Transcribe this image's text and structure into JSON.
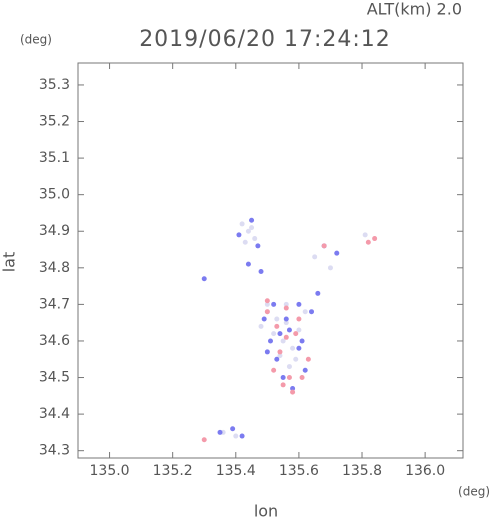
{
  "chart_data": {
    "type": "scatter",
    "title": "2019/06/20 17:24:12",
    "annotation": "ALT(km) 2.0",
    "x_label": "lon",
    "y_label": "lat",
    "x_unit": "(deg)",
    "y_unit": "(deg)",
    "xlim": [
      134.9,
      136.12
    ],
    "ylim": [
      34.28,
      35.36
    ],
    "xticks": [
      {
        "value": 135.0,
        "label": "135.0"
      },
      135.2,
      135.4,
      135.6,
      135.8,
      {
        "value": 136.0,
        "label": "136.0"
      }
    ],
    "yticks": [
      34.3,
      34.4,
      34.5,
      34.6,
      34.7,
      34.8,
      34.9,
      {
        "value": 35.0,
        "label": "35.0"
      },
      35.1,
      35.2,
      35.3
    ],
    "series": [
      {
        "color": "#dcdcf2",
        "x": [
          135.42,
          135.44,
          135.46,
          135.43,
          135.45,
          135.5,
          135.53,
          135.56,
          135.52,
          135.55,
          135.58,
          135.54,
          135.57,
          135.6,
          135.62,
          135.5,
          135.56,
          135.59,
          135.48,
          135.65,
          135.7,
          135.36,
          135.4,
          135.81
        ],
        "values": [
          34.92,
          34.9,
          34.88,
          34.87,
          34.91,
          34.68,
          34.66,
          34.65,
          34.62,
          34.6,
          34.58,
          34.56,
          34.53,
          34.63,
          34.68,
          34.7,
          34.7,
          34.55,
          34.64,
          34.83,
          34.8,
          34.35,
          34.34,
          34.89
        ]
      },
      {
        "color": "#7b7bf0",
        "x": [
          135.45,
          135.47,
          135.41,
          135.44,
          135.48,
          135.49,
          135.51,
          135.53,
          135.57,
          135.6,
          135.62,
          135.55,
          135.58,
          135.61,
          135.52,
          135.56,
          135.64,
          135.68,
          135.72,
          135.3,
          135.35,
          135.39,
          135.42,
          135.5,
          135.6,
          135.54,
          135.66
        ],
        "values": [
          34.93,
          34.86,
          34.89,
          34.81,
          34.79,
          34.66,
          34.6,
          34.55,
          34.63,
          34.58,
          34.52,
          34.5,
          34.47,
          34.6,
          34.7,
          34.66,
          34.68,
          34.86,
          34.84,
          34.77,
          34.35,
          34.36,
          34.34,
          34.57,
          34.7,
          34.62,
          34.73
        ]
      },
      {
        "color": "#f49aaa",
        "x": [
          135.5,
          135.53,
          135.56,
          135.59,
          135.55,
          135.58,
          135.57,
          135.54,
          135.6,
          135.63,
          135.52,
          135.68,
          135.84,
          135.82,
          135.3,
          135.5,
          135.61,
          135.56
        ],
        "values": [
          34.71,
          34.64,
          34.61,
          34.62,
          34.48,
          34.46,
          34.5,
          34.57,
          34.66,
          34.55,
          34.52,
          34.86,
          34.88,
          34.87,
          34.33,
          34.68,
          34.5,
          34.69
        ]
      }
    ]
  }
}
